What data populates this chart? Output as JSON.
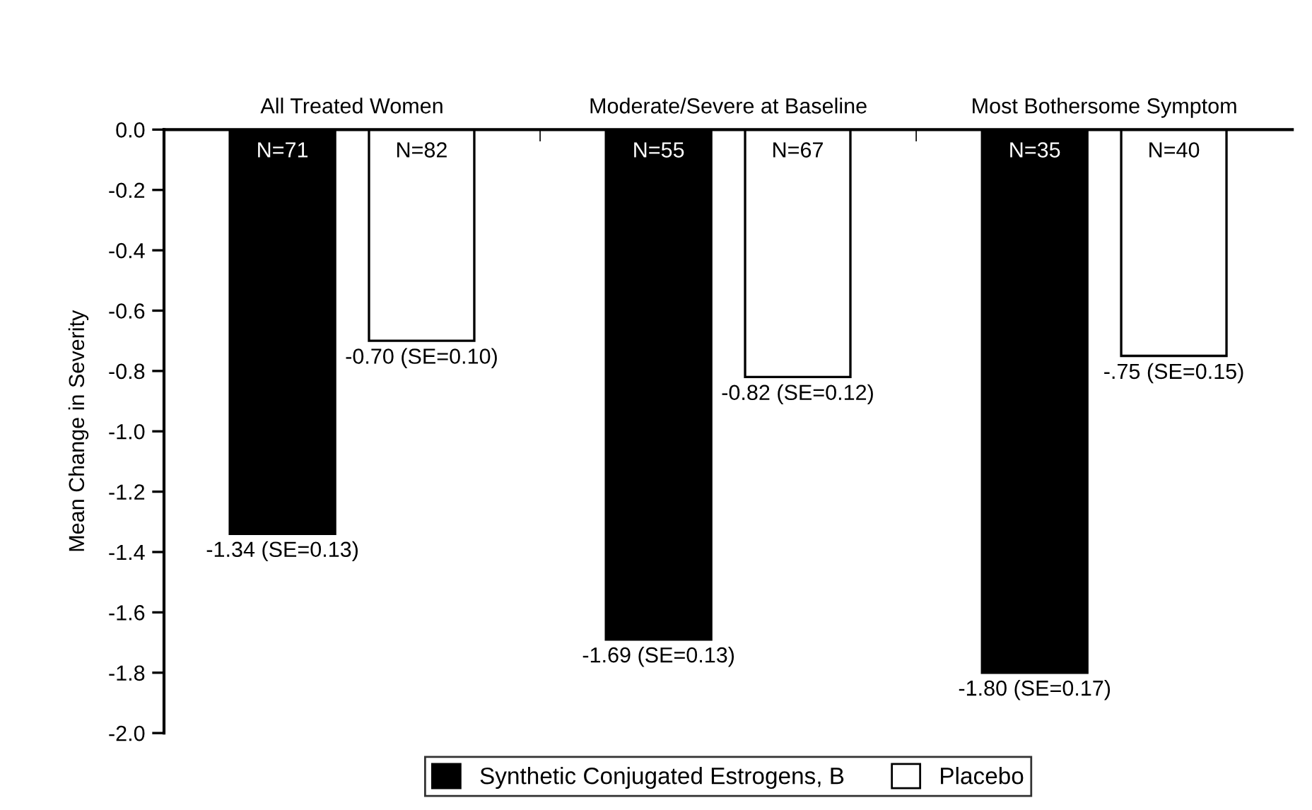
{
  "chart_data": {
    "type": "bar",
    "categories": [
      "All Treated Women",
      "Moderate/Severe at Baseline",
      "Most Bothersome Symptom"
    ],
    "ylabel": "Mean Change in Severity",
    "series": [
      {
        "name": "Synthetic Conjugated Estrogens, B",
        "color": "#000000",
        "values": [
          -1.34,
          -1.69,
          -1.8
        ],
        "value_labels": [
          "-1.34 (SE=0.13)",
          "-1.69 (SE=0.13)",
          "-1.80 (SE=0.17)"
        ]
      },
      {
        "name": "Placebo",
        "color": "#ffffff",
        "values": [
          -0.7,
          -0.82,
          -0.75
        ],
        "value_labels": [
          "-0.70 (SE=0.10)",
          "-0.82 (SE=0.12)",
          "-.75 (SE=0.15)"
        ]
      }
    ],
    "annotations": [
      "N=71",
      "N=55",
      "N=35",
      "N=82",
      "N=67",
      "N=40"
    ],
    "ylim": [
      -2.0,
      0.0
    ],
    "yticks": [
      {
        "value": 0.0,
        "label": "0.0"
      },
      {
        "value": -0.2,
        "label": "-0.2"
      },
      {
        "value": -0.4,
        "label": "-0.4"
      },
      {
        "value": -0.6,
        "label": "-0.6"
      },
      {
        "value": -0.8,
        "label": "-0.8"
      },
      {
        "value": -1.0,
        "label": "-1.0"
      },
      {
        "value": -1.2,
        "label": "-1.2"
      },
      {
        "value": -1.4,
        "label": "-1.4"
      },
      {
        "value": -1.6,
        "label": "-1.6"
      },
      {
        "value": -1.8,
        "label": "-1.8"
      },
      {
        "value": -2.0,
        "label": "-2.0"
      }
    ],
    "grid": false,
    "legend": "bottom"
  }
}
